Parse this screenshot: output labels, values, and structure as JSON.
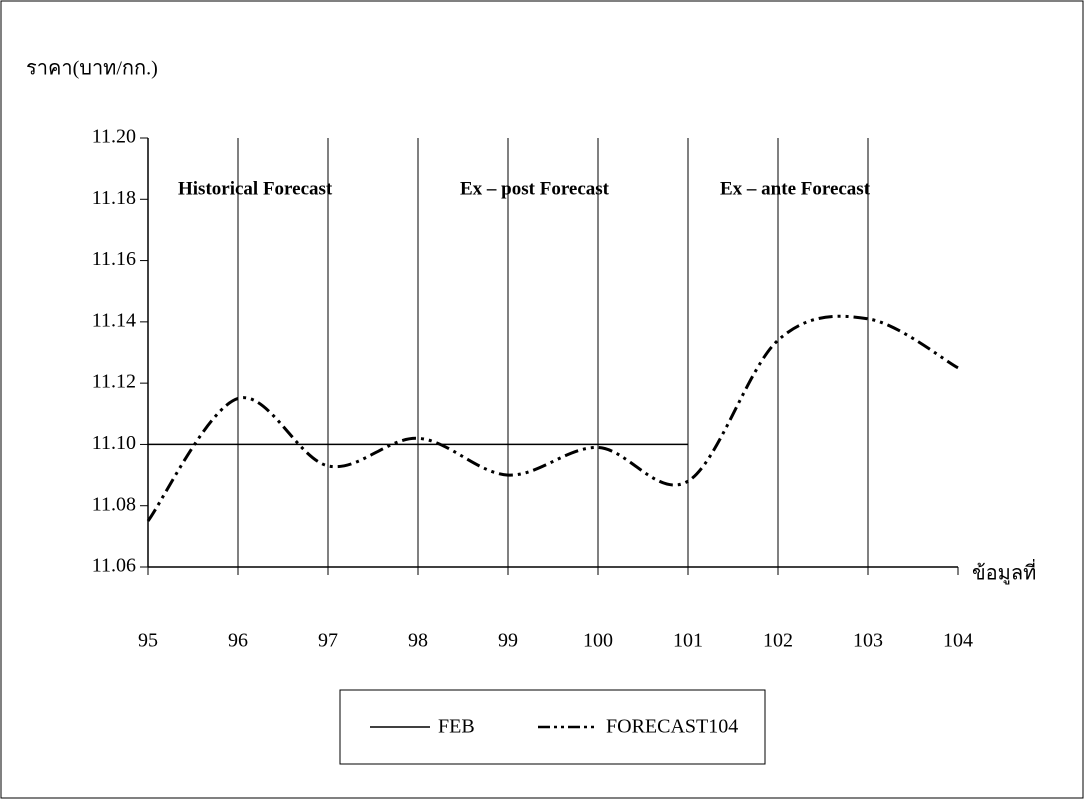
{
  "chart_data": {
    "type": "line",
    "y_label": "ราคา(บาท/กก.)",
    "x_label": "ข้อมูลที่",
    "annotations": [
      "Historical  Forecast",
      "Ex – post  Forecast",
      "Ex – ante  Forecast"
    ],
    "x": [
      95,
      96,
      97,
      98,
      99,
      100,
      101,
      102,
      103,
      104
    ],
    "series": [
      {
        "name": "FEB",
        "color": "#000000",
        "values": [
          11.1,
          11.1,
          11.1,
          11.1,
          11.1,
          11.1,
          11.1,
          null,
          null,
          null
        ]
      },
      {
        "name": "FORECAST104",
        "color": "#000000",
        "values": [
          11.075,
          11.115,
          11.093,
          11.102,
          11.09,
          11.099,
          11.088,
          11.134,
          11.141,
          11.125
        ]
      }
    ],
    "xlim": [
      95,
      104
    ],
    "xticks": [
      95,
      96,
      97,
      98,
      99,
      100,
      101,
      102,
      103,
      104
    ],
    "ylim": [
      11.06,
      11.2
    ],
    "yticks": [
      11.06,
      11.08,
      {
        "value": 11.1,
        "label": "11.10"
      },
      11.12,
      11.14,
      11.16,
      11.18,
      {
        "value": 11.2,
        "label": "11.20"
      }
    ],
    "grid": true,
    "legend": "bottom"
  }
}
